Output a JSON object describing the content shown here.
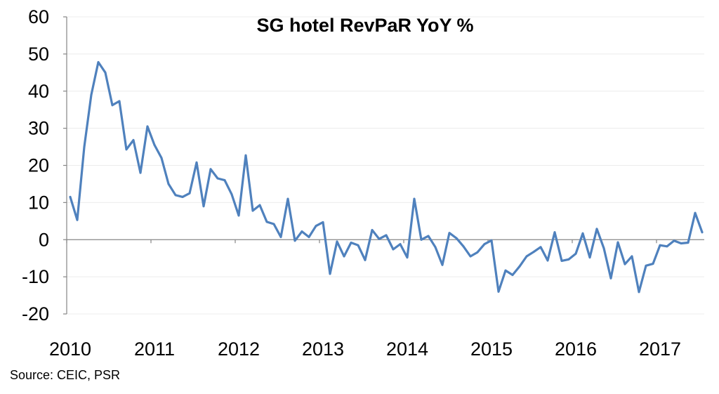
{
  "chart_data": {
    "type": "line",
    "title": "SG hotel RevPaR YoY %",
    "xlabel": "",
    "ylabel": "",
    "ylim": [
      -20,
      60
    ],
    "yticks": [
      "60",
      "50",
      "40",
      "30",
      "20",
      "10",
      "0",
      "-10",
      "-20"
    ],
    "xticks": [
      "2010",
      "2011",
      "2012",
      "2013",
      "2014",
      "2015",
      "2016",
      "2017"
    ],
    "grid": true,
    "line_color": "#4f81bd",
    "series": [
      {
        "x_start": "2010-01",
        "x_step": "month",
        "values": [
          11.5,
          5.3,
          25.0,
          39.0,
          47.8,
          45.0,
          36.2,
          37.3,
          24.3,
          26.8,
          18.0,
          30.5,
          25.5,
          22.0,
          15.0,
          12.0,
          11.5,
          12.5,
          20.8,
          9.0,
          19.0,
          16.5,
          16.0,
          12.2,
          6.5,
          22.7,
          7.8,
          9.3,
          4.8,
          4.2,
          0.7,
          11.0,
          -0.3,
          2.2,
          0.7,
          3.7,
          4.7,
          -9.2,
          -0.5,
          -4.5,
          -0.8,
          -1.5,
          -5.5,
          2.6,
          0.2,
          1.2,
          -2.6,
          -1.2,
          -4.8,
          11.0,
          0.0,
          1.0,
          -2.0,
          -6.8,
          1.8,
          0.4,
          -1.8,
          -4.5,
          -3.4,
          -1.2,
          -0.2,
          -14.0,
          -8.3,
          -9.5,
          -7.2,
          -4.5,
          -3.3,
          -2.0,
          -5.6,
          2.0,
          -5.7,
          -5.3,
          -3.8,
          1.7,
          -4.8,
          2.9,
          -2.3,
          -10.4,
          -0.7,
          -6.6,
          -4.5,
          -14.1,
          -7.0,
          -6.5,
          -1.5,
          -1.8,
          -0.3,
          -1.0,
          -0.8,
          7.2,
          2.0
        ]
      }
    ]
  },
  "source": "Source: CEIC, PSR"
}
